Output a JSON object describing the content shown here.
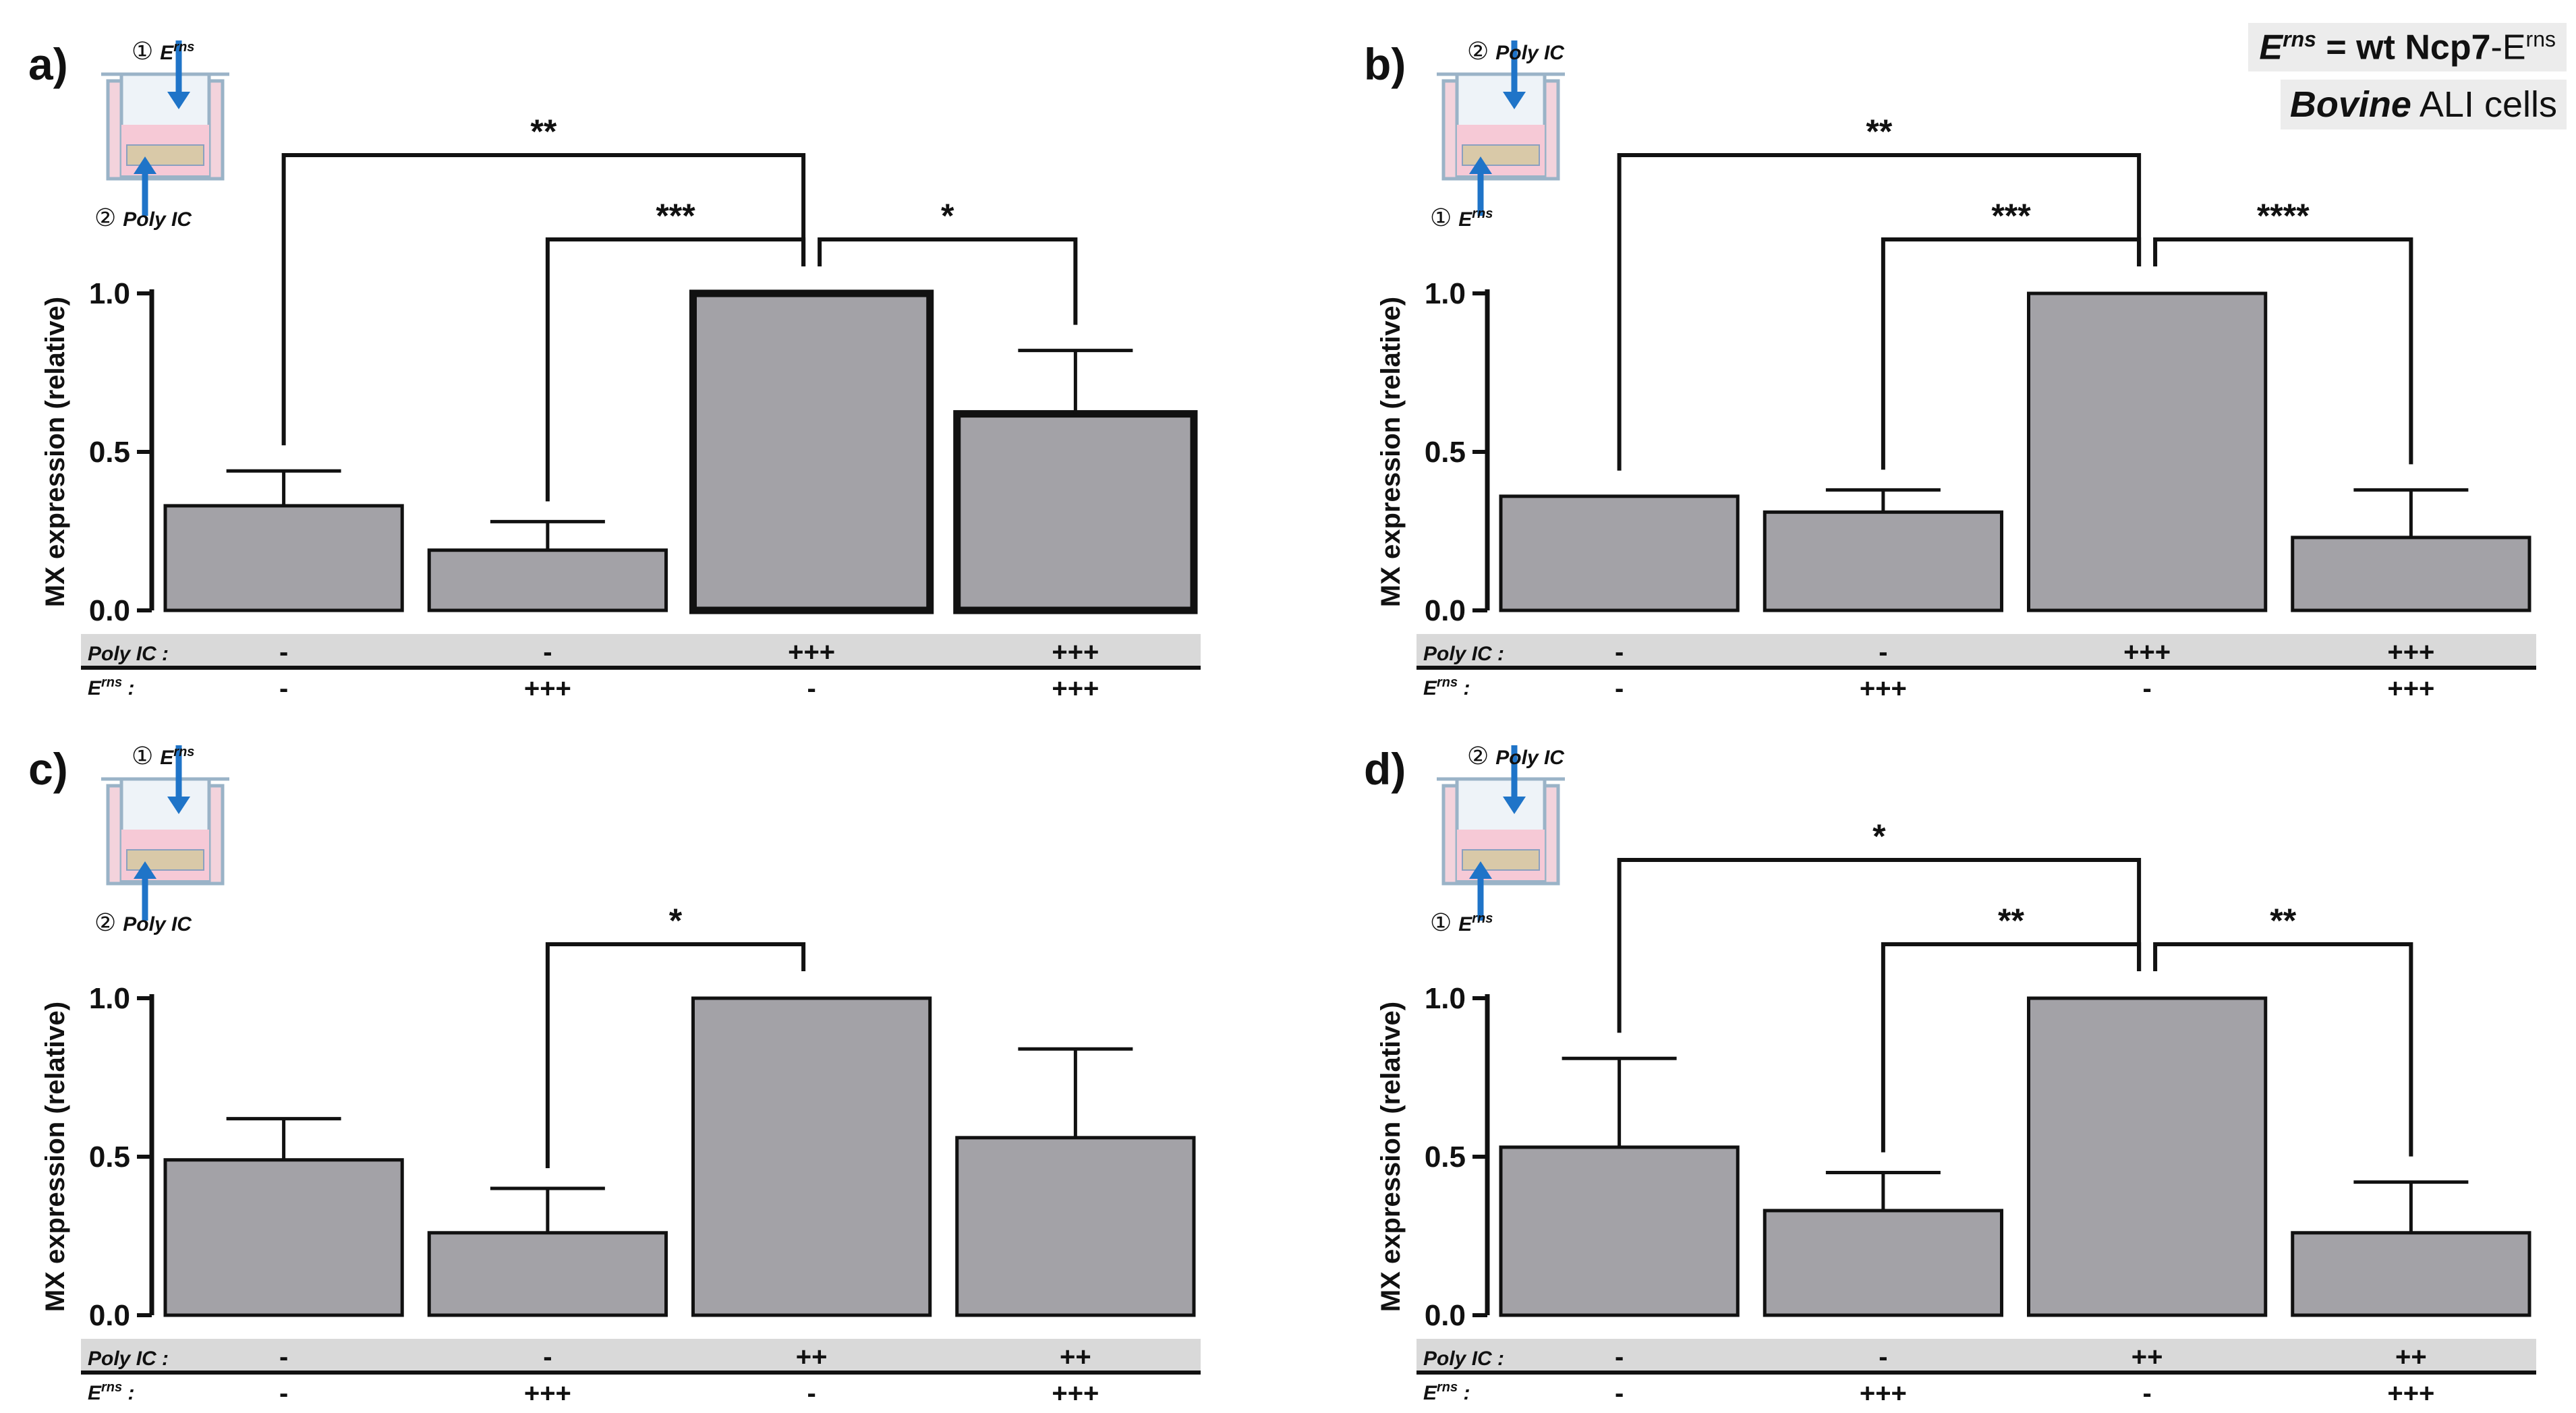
{
  "legend": {
    "line1": {
      "e": "E",
      "sup": "rns",
      "eq": " = wt Ncp7",
      "suffix": "-E",
      "suffix_sup": "rns"
    },
    "line2": {
      "bold": "Bovine",
      "rest": " ALI cells"
    }
  },
  "chart_data": [
    {
      "type": "bar",
      "panel": "a)",
      "ylabel": "MX expression (relative)",
      "ylim": [
        0,
        1.0
      ],
      "yticks": [
        "0.0",
        "0.5",
        "1.0"
      ],
      "values": [
        0.33,
        0.19,
        1.0,
        0.62
      ],
      "errors": [
        0.11,
        0.09,
        0,
        0.2
      ],
      "highlight": [
        false,
        false,
        true,
        true
      ],
      "row_labels": [
        "Poly IC :",
        "rns :"
      ],
      "row_label_E": "E",
      "poly_ic": [
        "-",
        "-",
        "+++",
        "+++"
      ],
      "erns": [
        "-",
        "+++",
        "-",
        "+++"
      ],
      "inset": {
        "top_num": "①",
        "top_label": "E",
        "top_sup": "rns",
        "bottom_num": "②",
        "bottom_label": "Poly IC",
        "arrow": "top-down"
      },
      "brackets": [
        {
          "from": 0,
          "to": 2,
          "label": "**",
          "level": 0
        },
        {
          "from": 1,
          "to": 2,
          "label": "***",
          "level": 1
        },
        {
          "from": 2,
          "to": 3,
          "label": "*",
          "level": 1
        }
      ]
    },
    {
      "type": "bar",
      "panel": "b)",
      "ylabel": "MX expression (relative)",
      "ylim": [
        0,
        1.0
      ],
      "yticks": [
        "0.0",
        "0.5",
        "1.0"
      ],
      "values": [
        0.36,
        0.31,
        1.0,
        0.23
      ],
      "errors": [
        0,
        0.07,
        0,
        0.15
      ],
      "highlight": [
        false,
        false,
        false,
        false
      ],
      "row_labels": [
        "Poly IC :",
        "rns :"
      ],
      "row_label_E": "E",
      "poly_ic": [
        "-",
        "-",
        "+++",
        "+++"
      ],
      "erns": [
        "-",
        "+++",
        "-",
        "+++"
      ],
      "inset": {
        "top_num": "②",
        "top_label": "Poly IC",
        "top_sup": "",
        "bottom_num": "①",
        "bottom_label": "E",
        "bottom_sup": "rns",
        "arrow": "bottom-up"
      },
      "brackets": [
        {
          "from": 0,
          "to": 2,
          "label": "**",
          "level": 0
        },
        {
          "from": 1,
          "to": 2,
          "label": "***",
          "level": 1
        },
        {
          "from": 2,
          "to": 3,
          "label": "****",
          "level": 1
        }
      ]
    },
    {
      "type": "bar",
      "panel": "c)",
      "ylabel": "MX expression (relative)",
      "ylim": [
        0,
        1.0
      ],
      "yticks": [
        "0.0",
        "0.5",
        "1.0"
      ],
      "values": [
        0.49,
        0.26,
        1.0,
        0.56
      ],
      "errors": [
        0.13,
        0.14,
        0,
        0.28
      ],
      "highlight": [
        false,
        false,
        false,
        false
      ],
      "row_labels": [
        "Poly IC :",
        "rns :"
      ],
      "row_label_E": "E",
      "poly_ic": [
        "-",
        "-",
        "++",
        "++"
      ],
      "erns": [
        "-",
        "+++",
        "-",
        "+++"
      ],
      "inset": {
        "top_num": "①",
        "top_label": "E",
        "top_sup": "rns",
        "bottom_num": "②",
        "bottom_label": "Poly IC",
        "arrow": "top-down"
      },
      "brackets": [
        {
          "from": 1,
          "to": 2,
          "label": "*",
          "level": 1
        }
      ]
    },
    {
      "type": "bar",
      "panel": "d)",
      "ylabel": "MX expression (relative)",
      "ylim": [
        0,
        1.0
      ],
      "yticks": [
        "0.0",
        "0.5",
        "1.0"
      ],
      "values": [
        0.53,
        0.33,
        1.0,
        0.26
      ],
      "errors": [
        0.28,
        0.12,
        0,
        0.16
      ],
      "highlight": [
        false,
        false,
        false,
        false
      ],
      "row_labels": [
        "Poly IC :",
        "rns :"
      ],
      "row_label_E": "E",
      "poly_ic": [
        "-",
        "-",
        "++",
        "++"
      ],
      "erns": [
        "-",
        "+++",
        "-",
        "+++"
      ],
      "inset": {
        "top_num": "②",
        "top_label": "Poly IC",
        "top_sup": "",
        "bottom_num": "①",
        "bottom_label": "E",
        "bottom_sup": "rns",
        "arrow": "bottom-up"
      },
      "brackets": [
        {
          "from": 0,
          "to": 2,
          "label": "*",
          "level": 0
        },
        {
          "from": 1,
          "to": 2,
          "label": "**",
          "level": 1
        },
        {
          "from": 2,
          "to": 3,
          "label": "**",
          "level": 1
        }
      ]
    }
  ]
}
